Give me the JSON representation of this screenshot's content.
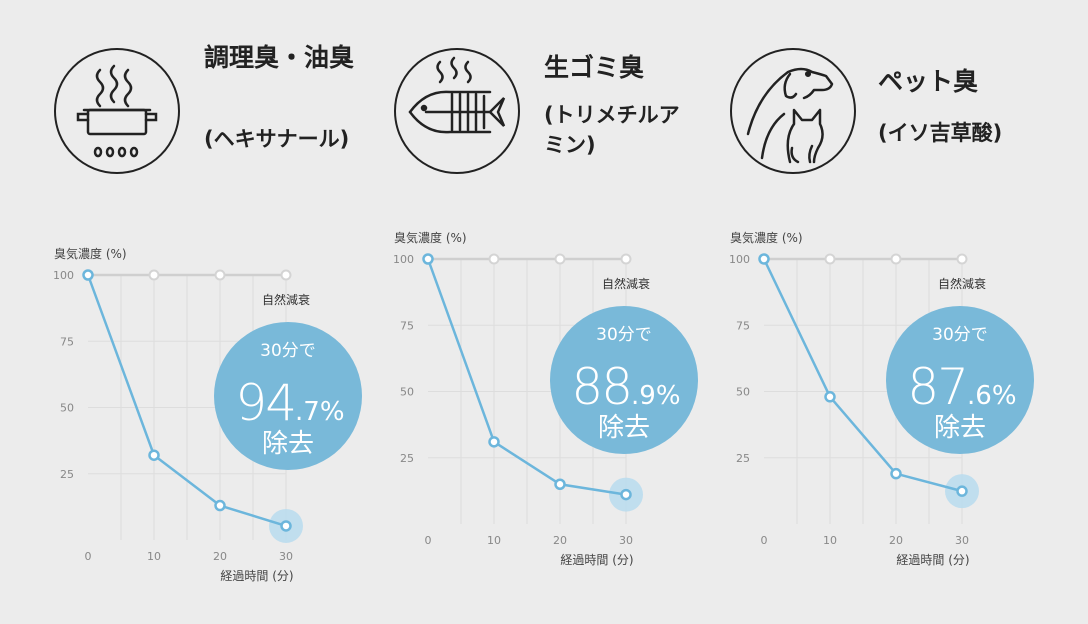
{
  "colors": {
    "line": "#6cb6dc",
    "badge": "#79b9d9",
    "grid": "#dddddd",
    "topline": "#cfcfcf"
  },
  "panels": [
    {
      "icon": "cooking-pot-icon",
      "title": "調理臭・油臭",
      "subtitle": "(ヘキサナール)",
      "badge": {
        "top": "30分で",
        "int": "94",
        "dec": ".7",
        "pct": "%",
        "bottom": "除去"
      }
    },
    {
      "icon": "fish-bone-icon",
      "title": "生ゴミ臭",
      "subtitle": "(トリメチルアミン)",
      "badge": {
        "top": "30分で",
        "int": "88",
        "dec": ".9",
        "pct": "%",
        "bottom": "除去"
      }
    },
    {
      "icon": "dog-cat-icon",
      "title": "ペット臭",
      "subtitle": "(イソ吉草酸)",
      "badge": {
        "top": "30分で",
        "int": "87",
        "dec": ".6",
        "pct": "%",
        "bottom": "除去"
      }
    }
  ],
  "chart_data": [
    {
      "type": "line",
      "ylabel": "臭気濃度 (%)",
      "xlabel": "経過時間 (分)",
      "x": [
        0,
        10,
        20,
        30
      ],
      "y": [
        100,
        32,
        13,
        5.3
      ],
      "reference": {
        "label": "自然減衰",
        "x": [
          0,
          10,
          20,
          30
        ],
        "y": [
          100,
          100,
          100,
          100
        ]
      },
      "xticks": [
        "0",
        "10",
        "20",
        "30"
      ],
      "yticks": [
        "25",
        "50",
        "75",
        "100"
      ],
      "ylim": [
        0,
        100
      ],
      "xlim": [
        0,
        30
      ]
    },
    {
      "type": "line",
      "ylabel": "臭気濃度 (%)",
      "xlabel": "経過時間 (分)",
      "x": [
        0,
        10,
        20,
        30
      ],
      "y": [
        100,
        31,
        15,
        11.1
      ],
      "reference": {
        "label": "自然減衰",
        "x": [
          0,
          10,
          20,
          30
        ],
        "y": [
          100,
          100,
          100,
          100
        ]
      },
      "xticks": [
        "0",
        "10",
        "20",
        "30"
      ],
      "yticks": [
        "25",
        "50",
        "75",
        "100"
      ],
      "ylim": [
        0,
        100
      ],
      "xlim": [
        0,
        30
      ]
    },
    {
      "type": "line",
      "ylabel": "臭気濃度 (%)",
      "xlabel": "経過時間 (分)",
      "x": [
        0,
        10,
        20,
        30
      ],
      "y": [
        100,
        48,
        19,
        12.4
      ],
      "reference": {
        "label": "自然減衰",
        "x": [
          0,
          10,
          20,
          30
        ],
        "y": [
          100,
          100,
          100,
          100
        ]
      },
      "xticks": [
        "0",
        "10",
        "20",
        "30"
      ],
      "yticks": [
        "25",
        "50",
        "75",
        "100"
      ],
      "ylim": [
        0,
        100
      ],
      "xlim": [
        0,
        30
      ]
    }
  ]
}
